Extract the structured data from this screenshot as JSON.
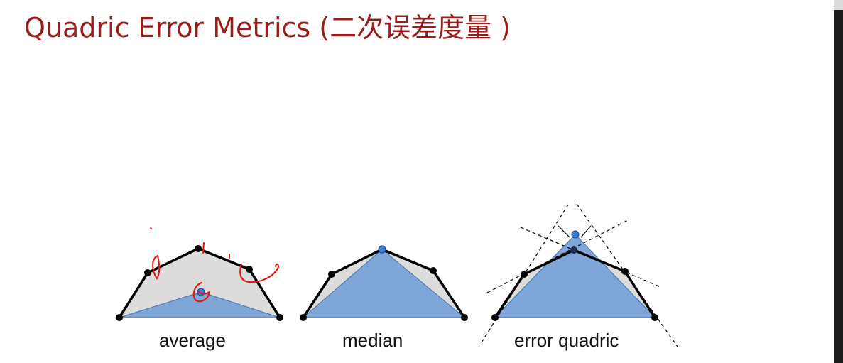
{
  "slide": {
    "title": "Quadric Error Metrics (二次误差度量 )",
    "title_color": "#9b1b1b"
  },
  "diagrams": [
    {
      "caption": "average"
    },
    {
      "caption": "median"
    },
    {
      "caption": "error quadric"
    }
  ],
  "colors": {
    "original_fill": "#dcdcdc",
    "simplified_fill": "#7ea6d9",
    "new_vertex": "#3b7fdb",
    "vertex": "#000000",
    "annotation": "#e3120b"
  }
}
